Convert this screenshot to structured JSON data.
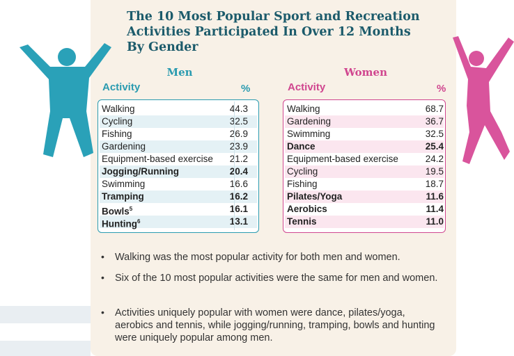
{
  "title": [
    "The 10 Most Popular Sport and Recreation",
    "Activities Participated In Over 12 Months",
    "By Gender"
  ],
  "tables": [
    {
      "heading": "Men",
      "activity_header": "Activity",
      "percent_header": "%",
      "rows": [
        {
          "activity": "Walking",
          "percent": "44.3"
        },
        {
          "activity": "Cycling",
          "percent": "32.5"
        },
        {
          "activity": "Fishing",
          "percent": "26.9"
        },
        {
          "activity": "Gardening",
          "percent": "23.9"
        },
        {
          "activity": "Equipment-based exercise",
          "percent": "21.2"
        },
        {
          "activity": "Jogging/Running",
          "percent": "20.4",
          "bold": true
        },
        {
          "activity": "Swimming",
          "percent": "16.6"
        },
        {
          "activity": "Tramping",
          "percent": "16.2",
          "bold": true
        },
        {
          "activity": "Bowls",
          "footnote": "5",
          "percent": "16.1",
          "bold": true
        },
        {
          "activity": "Hunting",
          "footnote": "6",
          "percent": "13.1",
          "bold": true
        }
      ]
    },
    {
      "heading": "Women",
      "activity_header": "Activity",
      "percent_header": "%",
      "rows": [
        {
          "activity": "Walking",
          "percent": "68.7"
        },
        {
          "activity": "Gardening",
          "percent": "36.7"
        },
        {
          "activity": "Swimming",
          "percent": "32.5"
        },
        {
          "activity": "Dance",
          "percent": "25.4",
          "bold": true
        },
        {
          "activity": "Equipment-based exercise",
          "percent": "24.2"
        },
        {
          "activity": "Cycling",
          "percent": "19.5"
        },
        {
          "activity": "Fishing",
          "percent": "18.7"
        },
        {
          "activity": "Pilates/Yoga",
          "percent": "11.6",
          "bold": true
        },
        {
          "activity": "Aerobics",
          "percent": "11.4",
          "bold": true
        },
        {
          "activity": "Tennis",
          "percent": "11.0",
          "bold": true
        }
      ]
    }
  ],
  "bullets": [
    "Walking was the most popular activity for both men and women.",
    "Six of the 10 most popular activities were the same for men and women.",
    "Activities uniquely popular with women were dance, pilates/yoga, aerobics and tennis, while jogging/running, tramping, bowls and hunting were uniquely popular among men."
  ]
}
